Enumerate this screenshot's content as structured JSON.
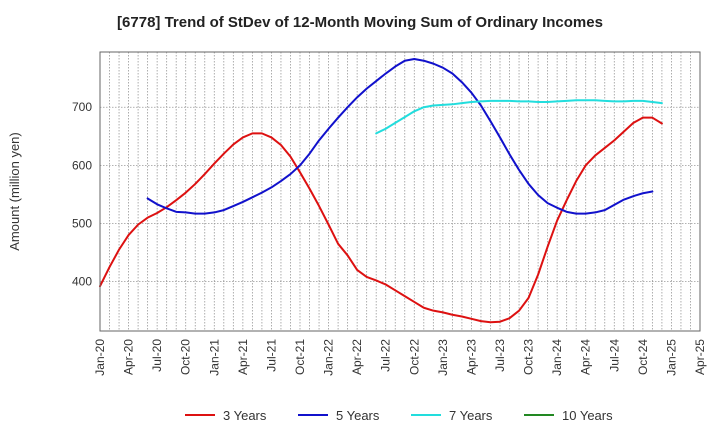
{
  "chart_data": {
    "type": "line",
    "title": "[6778]  Trend of StDev of 12-Month Moving Sum of Ordinary Incomes",
    "ylabel": "Amount (million yen)",
    "xlabel": "",
    "ylim": [
      315,
      795
    ],
    "yticks": [
      400,
      500,
      600,
      700
    ],
    "xticks": [
      "Jan-20",
      "Apr-20",
      "Jul-20",
      "Oct-20",
      "Jan-21",
      "Apr-21",
      "Jul-21",
      "Oct-21",
      "Jan-22",
      "Apr-22",
      "Jul-22",
      "Oct-22",
      "Jan-23",
      "Apr-23",
      "Jul-23",
      "Oct-23",
      "Jan-24",
      "Apr-24",
      "Jul-24",
      "Oct-24",
      "Jan-25",
      "Apr-25"
    ],
    "grid": true,
    "legend_position": "bottom",
    "series": [
      {
        "name": "3 Years",
        "color": "#dd1111",
        "points": [
          [
            "Jan-20",
            392
          ],
          [
            "Feb-20",
            425
          ],
          [
            "Mar-20",
            455
          ],
          [
            "Apr-20",
            480
          ],
          [
            "May-20",
            498
          ],
          [
            "Jun-20",
            510
          ],
          [
            "Jul-20",
            518
          ],
          [
            "Aug-20",
            528
          ],
          [
            "Sep-20",
            540
          ],
          [
            "Oct-20",
            553
          ],
          [
            "Nov-20",
            568
          ],
          [
            "Dec-20",
            585
          ],
          [
            "Jan-21",
            603
          ],
          [
            "Feb-21",
            620
          ],
          [
            "Mar-21",
            636
          ],
          [
            "Apr-21",
            648
          ],
          [
            "May-21",
            655
          ],
          [
            "Jun-21",
            655
          ],
          [
            "Jul-21",
            648
          ],
          [
            "Aug-21",
            635
          ],
          [
            "Sep-21",
            615
          ],
          [
            "Oct-21",
            588
          ],
          [
            "Nov-21",
            560
          ],
          [
            "Dec-21",
            530
          ],
          [
            "Jan-22",
            498
          ],
          [
            "Feb-22",
            465
          ],
          [
            "Mar-22",
            445
          ],
          [
            "Apr-22",
            420
          ],
          [
            "May-22",
            408
          ],
          [
            "Jun-22",
            402
          ],
          [
            "Jul-22",
            395
          ],
          [
            "Aug-22",
            385
          ],
          [
            "Sep-22",
            375
          ],
          [
            "Oct-22",
            365
          ],
          [
            "Nov-22",
            355
          ],
          [
            "Dec-22",
            350
          ],
          [
            "Jan-23",
            347
          ],
          [
            "Feb-23",
            343
          ],
          [
            "Mar-23",
            340
          ],
          [
            "Apr-23",
            336
          ],
          [
            "May-23",
            332
          ],
          [
            "Jun-23",
            330
          ],
          [
            "Jul-23",
            331
          ],
          [
            "Aug-23",
            337
          ],
          [
            "Sep-23",
            350
          ],
          [
            "Oct-23",
            372
          ],
          [
            "Nov-23",
            412
          ],
          [
            "Dec-23",
            460
          ],
          [
            "Jan-24",
            505
          ],
          [
            "Feb-24",
            540
          ],
          [
            "Mar-24",
            573
          ],
          [
            "Apr-24",
            600
          ],
          [
            "May-24",
            617
          ],
          [
            "Jun-24",
            630
          ],
          [
            "Jul-24",
            643
          ],
          [
            "Aug-24",
            658
          ],
          [
            "Sep-24",
            673
          ],
          [
            "Oct-24",
            682
          ],
          [
            "Nov-24",
            682
          ],
          [
            "Dec-24",
            672
          ]
        ]
      },
      {
        "name": "5 Years",
        "color": "#1111cc",
        "points": [
          [
            "Jun-20",
            543
          ],
          [
            "Jul-20",
            533
          ],
          [
            "Aug-20",
            526
          ],
          [
            "Sep-20",
            520
          ],
          [
            "Oct-20",
            519
          ],
          [
            "Nov-20",
            517
          ],
          [
            "Dec-20",
            517
          ],
          [
            "Jan-21",
            519
          ],
          [
            "Feb-21",
            523
          ],
          [
            "Mar-21",
            530
          ],
          [
            "Apr-21",
            537
          ],
          [
            "May-21",
            545
          ],
          [
            "Jun-21",
            553
          ],
          [
            "Jul-21",
            562
          ],
          [
            "Aug-21",
            573
          ],
          [
            "Sep-21",
            585
          ],
          [
            "Oct-21",
            600
          ],
          [
            "Nov-21",
            620
          ],
          [
            "Dec-21",
            643
          ],
          [
            "Jan-22",
            663
          ],
          [
            "Feb-22",
            682
          ],
          [
            "Mar-22",
            700
          ],
          [
            "Apr-22",
            717
          ],
          [
            "May-22",
            732
          ],
          [
            "Jun-22",
            745
          ],
          [
            "Jul-22",
            758
          ],
          [
            "Aug-22",
            770
          ],
          [
            "Sep-22",
            780
          ],
          [
            "Oct-22",
            783
          ],
          [
            "Nov-22",
            780
          ],
          [
            "Dec-22",
            775
          ],
          [
            "Jan-23",
            768
          ],
          [
            "Feb-23",
            758
          ],
          [
            "Mar-23",
            743
          ],
          [
            "Apr-23",
            725
          ],
          [
            "May-23",
            703
          ],
          [
            "Jun-23",
            676
          ],
          [
            "Jul-23",
            648
          ],
          [
            "Aug-23",
            619
          ],
          [
            "Sep-23",
            592
          ],
          [
            "Oct-23",
            568
          ],
          [
            "Nov-23",
            549
          ],
          [
            "Dec-23",
            535
          ],
          [
            "Jan-24",
            527
          ],
          [
            "Feb-24",
            520
          ],
          [
            "Mar-24",
            517
          ],
          [
            "Apr-24",
            517
          ],
          [
            "May-24",
            519
          ],
          [
            "Jun-24",
            523
          ],
          [
            "Jul-24",
            532
          ],
          [
            "Aug-24",
            541
          ],
          [
            "Sep-24",
            547
          ],
          [
            "Oct-24",
            552
          ],
          [
            "Nov-24",
            555
          ]
        ]
      },
      {
        "name": "7 Years",
        "color": "#22dddd",
        "points": [
          [
            "Jun-22",
            655
          ],
          [
            "Jul-22",
            663
          ],
          [
            "Aug-22",
            673
          ],
          [
            "Sep-22",
            683
          ],
          [
            "Oct-22",
            693
          ],
          [
            "Nov-22",
            700
          ],
          [
            "Dec-22",
            703
          ],
          [
            "Jan-23",
            704
          ],
          [
            "Feb-23",
            705
          ],
          [
            "Mar-23",
            707
          ],
          [
            "Apr-23",
            709
          ],
          [
            "May-23",
            710
          ],
          [
            "Jun-23",
            711
          ],
          [
            "Jul-23",
            711
          ],
          [
            "Aug-23",
            711
          ],
          [
            "Sep-23",
            710
          ],
          [
            "Oct-23",
            710
          ],
          [
            "Nov-23",
            709
          ],
          [
            "Dec-23",
            709
          ],
          [
            "Jan-24",
            710
          ],
          [
            "Feb-24",
            711
          ],
          [
            "Mar-24",
            712
          ],
          [
            "Apr-24",
            712
          ],
          [
            "May-24",
            712
          ],
          [
            "Jun-24",
            711
          ],
          [
            "Jul-24",
            710
          ],
          [
            "Aug-24",
            710
          ],
          [
            "Sep-24",
            711
          ],
          [
            "Oct-24",
            711
          ],
          [
            "Nov-24",
            709
          ],
          [
            "Dec-24",
            707
          ]
        ]
      },
      {
        "name": "10 Years",
        "color": "#228822",
        "points": []
      }
    ]
  }
}
